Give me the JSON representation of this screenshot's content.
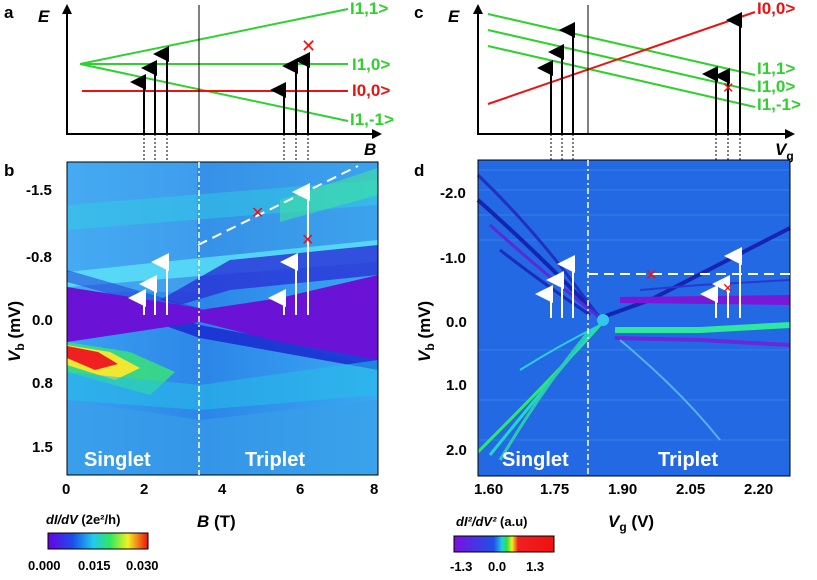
{
  "panels": {
    "a": {
      "letter": "a",
      "energy_axis": "E",
      "field_axis": "B",
      "states": {
        "t_plus": "I1,1>",
        "t_zero": "I1,0>",
        "singlet": "I0,0>",
        "t_minus": "I1,-1>"
      }
    },
    "b": {
      "letter": "b",
      "ylabel_main": "V",
      "ylabel_sub": "b",
      "ylabel_unit": " (mV)",
      "yticks": [
        "-1.5",
        "-0.8",
        "0.0",
        "0.8",
        "1.5"
      ],
      "xticks": [
        "0",
        "2",
        "4",
        "6",
        "8"
      ],
      "xlabel_main": "B",
      "xlabel_unit": " (T)",
      "left_region": "Singlet",
      "right_region": "Triplet",
      "colorbar_label_main": "dI/dV",
      "colorbar_label_unit": " (2e²/h)",
      "colorbar_ticks": [
        "0.000",
        "0.015",
        "0.030"
      ]
    },
    "c": {
      "letter": "c",
      "energy_axis": "E",
      "gate_axis_main": "V",
      "gate_axis_sub": "g",
      "states": {
        "singlet": "I0,0>",
        "t_plus": "I1,1>",
        "t_zero": "I1,0>",
        "t_minus": "I1,-1>"
      }
    },
    "d": {
      "letter": "d",
      "ylabel_main": "V",
      "ylabel_sub": "b",
      "ylabel_unit": " (mV)",
      "yticks": [
        "-2.0",
        "-1.0",
        "0.0",
        "1.0",
        "2.0"
      ],
      "xticks": [
        "1.60",
        "1.75",
        "1.90",
        "2.05",
        "2.20"
      ],
      "xlabel_main": "V",
      "xlabel_sub": "g",
      "xlabel_unit": " (V)",
      "left_region": "Singlet",
      "right_region": "Triplet",
      "colorbar_label_main": "dI²/dV²",
      "colorbar_label_unit": " (a.u)",
      "colorbar_ticks": [
        "-1.3",
        "0.0",
        "1.3"
      ]
    }
  },
  "colors": {
    "green": "#2ed12e",
    "red": "#ee1111",
    "map_blue": "#1f63e0",
    "map_violet": "#6a12d6"
  }
}
